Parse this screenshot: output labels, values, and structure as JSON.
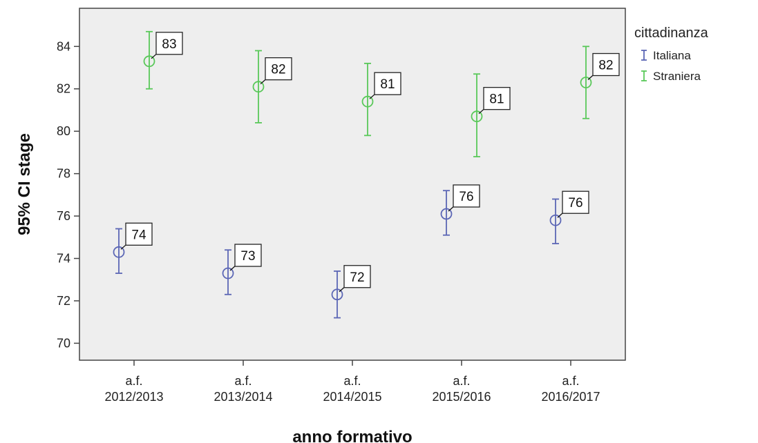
{
  "chart_data": {
    "type": "errorbar",
    "xlabel": "anno formativo",
    "ylabel": "95% CI stage",
    "ylim": [
      69.2,
      85.8
    ],
    "yticks": [
      70,
      72,
      74,
      76,
      78,
      80,
      82,
      84
    ],
    "categories": [
      [
        "a.f.",
        "2012/2013"
      ],
      [
        "a.f.",
        "2013/2014"
      ],
      [
        "a.f.",
        "2014/2015"
      ],
      [
        "a.f.",
        "2015/2016"
      ],
      [
        "a.f.",
        "2016/2017"
      ]
    ],
    "legend": {
      "title": "cittadinanza",
      "position": "right"
    },
    "grid": false,
    "series": [
      {
        "name": "Italiana",
        "color": "#5b66b5",
        "mean": [
          74.3,
          73.3,
          72.3,
          76.1,
          75.8
        ],
        "lower": [
          73.3,
          72.3,
          71.2,
          75.1,
          74.7
        ],
        "upper": [
          75.4,
          74.4,
          73.4,
          77.2,
          76.8
        ],
        "labels": [
          "74",
          "73",
          "72",
          "76",
          "76"
        ]
      },
      {
        "name": "Straniera",
        "color": "#59c859",
        "mean": [
          83.3,
          82.1,
          81.4,
          80.7,
          82.3
        ],
        "lower": [
          82.0,
          80.4,
          79.8,
          78.8,
          80.6
        ],
        "upper": [
          84.7,
          83.8,
          83.2,
          82.7,
          84.0
        ],
        "labels": [
          "83",
          "82",
          "81",
          "81",
          "82"
        ]
      }
    ]
  }
}
